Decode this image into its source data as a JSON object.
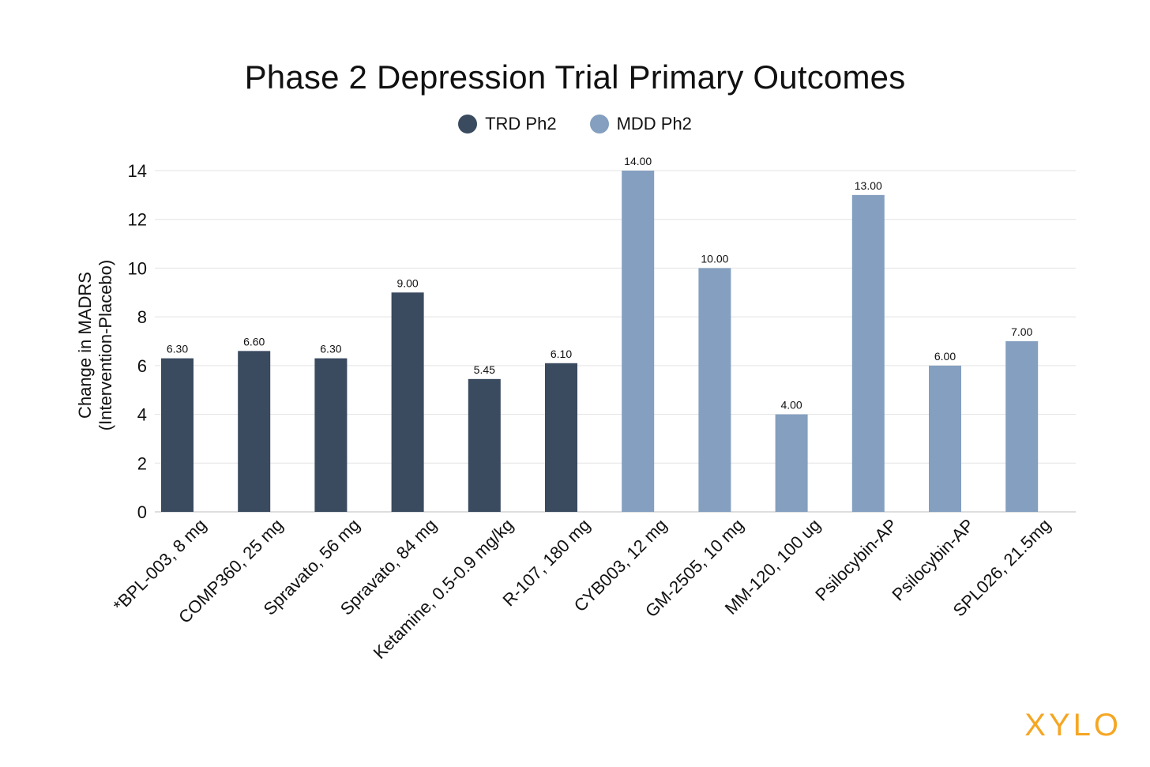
{
  "chart_data": {
    "type": "bar",
    "title": "Phase 2 Depression Trial Primary Outcomes",
    "ylabel_line1": "Change in MADRS",
    "ylabel_line2": "(Intervention-Placebo)",
    "xlabel": "",
    "ylim": [
      0,
      14
    ],
    "yticks": [
      0,
      2,
      4,
      6,
      8,
      10,
      12,
      14
    ],
    "grid": true,
    "legend_placement": "top-center",
    "categories": [
      "*BPL-003, 8 mg",
      "COMP360, 25 mg",
      "Spravato, 56 mg",
      "Spravato, 84 mg",
      "Ketamine, 0.5-0.9 mg/kg",
      "R-107, 180 mg",
      "CYB003, 12 mg",
      "GM-2505, 10 mg",
      "MM-120, 100 ug",
      "Psilocybin-AP",
      "Psilocybin-AP",
      "SPL026, 21.5mg"
    ],
    "series": [
      {
        "name": "TRD Ph2",
        "color": "#3a4a5f",
        "values": [
          6.3,
          6.6,
          6.3,
          9.0,
          5.45,
          6.1,
          null,
          null,
          null,
          null,
          null,
          null
        ],
        "labels": [
          "6.30",
          "6.60",
          "6.30",
          "9.00",
          "5.45",
          "6.10",
          null,
          null,
          null,
          null,
          null,
          null
        ]
      },
      {
        "name": "MDD Ph2",
        "color": "#849fbf",
        "values": [
          null,
          null,
          null,
          null,
          null,
          null,
          14.0,
          10.0,
          4.0,
          13.0,
          6.0,
          7.0
        ],
        "labels": [
          null,
          null,
          null,
          null,
          null,
          null,
          "14.00",
          "10.00",
          "4.00",
          "13.00",
          "6.00",
          "7.00"
        ]
      }
    ]
  },
  "brand": {
    "text": "XYLO",
    "color": "#f5a623"
  }
}
